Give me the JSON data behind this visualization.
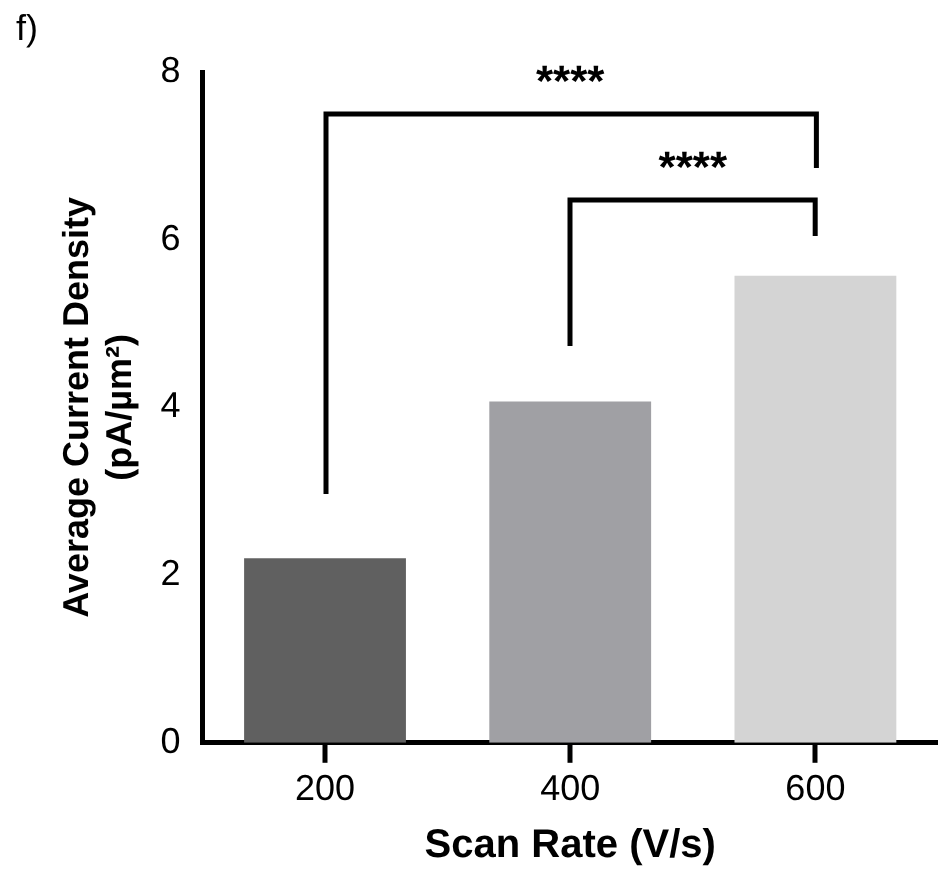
{
  "chart_data": {
    "type": "bar",
    "xlabel": "Scan Rate (V/s)",
    "ylabel": "Average Current Density\n(pA/µm²)",
    "categories": [
      "200",
      "400",
      "600"
    ],
    "values": [
      2.2,
      4.07,
      5.57
    ],
    "colors": [
      "#606060",
      "#a0a0a4",
      "#d4d4d4"
    ],
    "ylim": [
      0,
      8
    ],
    "yticks": [
      0,
      2,
      4,
      6,
      8
    ],
    "grid": false,
    "annotations": [
      "f)",
      "****",
      "****"
    ]
  }
}
